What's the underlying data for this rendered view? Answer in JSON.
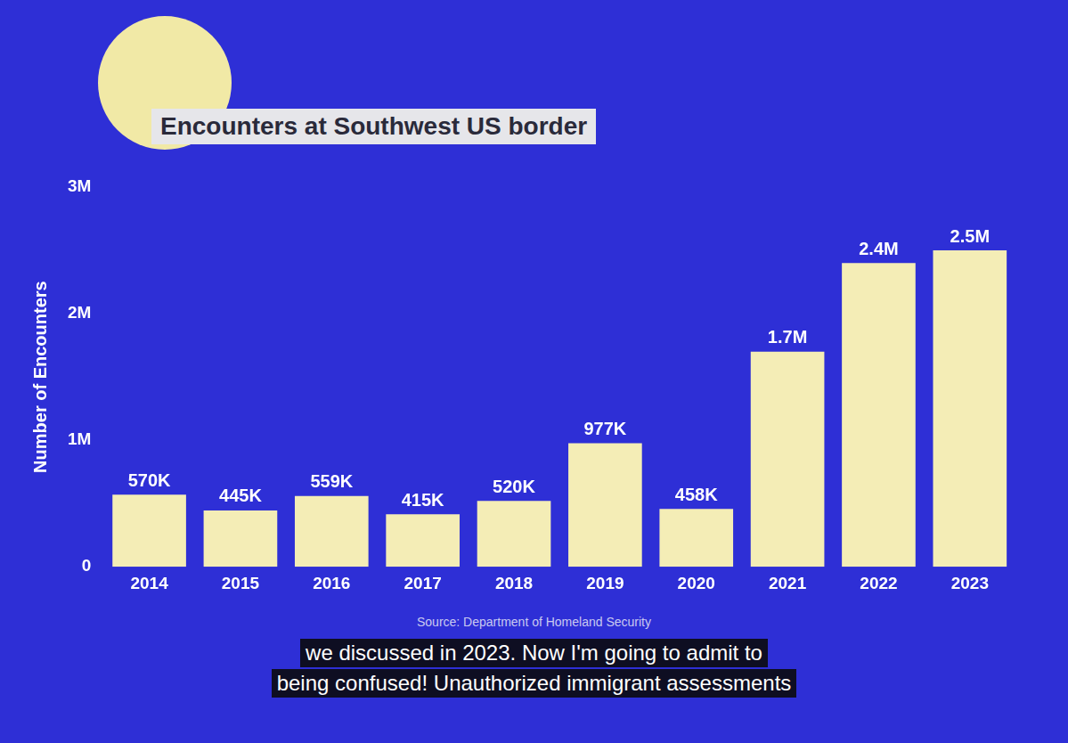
{
  "chart_data": {
    "type": "bar",
    "title": "Encounters at Southwest US border",
    "y_label": "Number of Encounters",
    "categories": [
      "2014",
      "2015",
      "2016",
      "2017",
      "2018",
      "2019",
      "2020",
      "2021",
      "2022",
      "2023"
    ],
    "values": [
      570000,
      445000,
      559000,
      415000,
      520000,
      977000,
      458000,
      1700000,
      2400000,
      2500000
    ],
    "value_labels": [
      "570K",
      "445K",
      "559K",
      "415K",
      "520K",
      "977K",
      "458K",
      "1.7M",
      "2.4M",
      "2.5M"
    ],
    "color": "#f4edb6",
    "ylim": [
      0,
      3000000
    ],
    "yticks": [
      0,
      {
        "value": 1000000,
        "label": "1M"
      },
      {
        "value": 2000000,
        "label": "2M"
      },
      {
        "value": 3000000,
        "label": "3M"
      }
    ],
    "grid": false,
    "data_labels": true,
    "source": "Source: Department of Homeland Security",
    "caption": [
      "we discussed in 2023. Now I'm going to admit to",
      "being confused! Unauthorized immigrant assessments"
    ]
  }
}
